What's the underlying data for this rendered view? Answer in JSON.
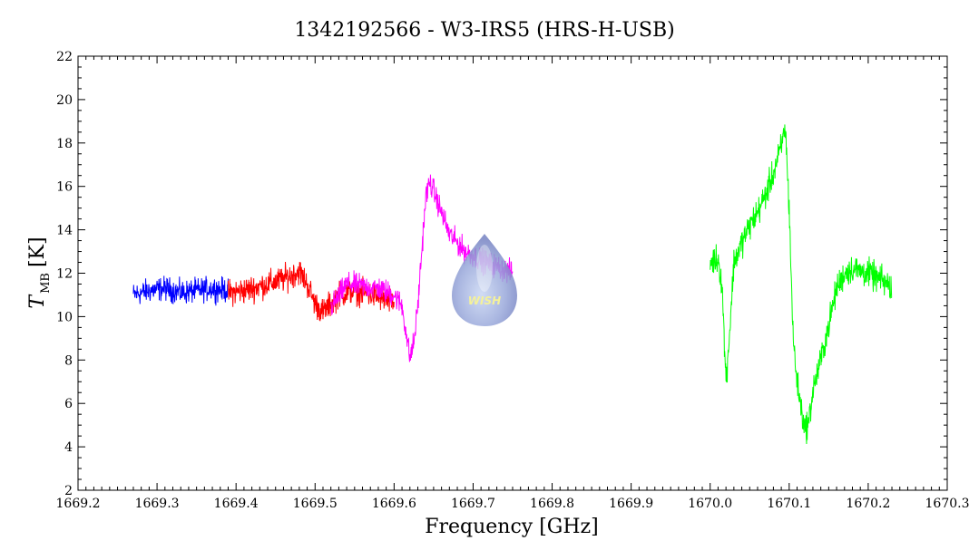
{
  "chart_data": {
    "type": "line",
    "title": "1342192566 - W3-IRS5 (HRS-H-USB)",
    "xlabel": "Frequency [GHz]",
    "ylabel_main": "T",
    "ylabel_sub": "MB",
    "ylabel_unit": "[K]",
    "xlim": [
      1669.2,
      1670.3
    ],
    "ylim": [
      2,
      22
    ],
    "x_ticks": [
      "1669.2",
      "1669.3",
      "1669.4",
      "1669.5",
      "1669.6",
      "1669.7",
      "1669.8",
      "1669.9",
      "1670.0",
      "1670.1",
      "1670.2",
      "1670.3"
    ],
    "y_ticks": [
      "2",
      "4",
      "6",
      "8",
      "10",
      "12",
      "14",
      "16",
      "18",
      "20",
      "22"
    ],
    "grid": false,
    "legend": "none",
    "logo_text": "WISH",
    "series": [
      {
        "color": "#0000ff",
        "points": [
          [
            1669.27,
            11.0
          ],
          [
            1669.29,
            11.2
          ],
          [
            1669.31,
            11.3
          ],
          [
            1669.33,
            11.1
          ],
          [
            1669.35,
            11.2
          ],
          [
            1669.37,
            11.3
          ],
          [
            1669.39,
            11.2
          ]
        ],
        "noise": 0.45
      },
      {
        "color": "#ff0000",
        "points": [
          [
            1669.39,
            11.1
          ],
          [
            1669.41,
            11.2
          ],
          [
            1669.43,
            11.4
          ],
          [
            1669.45,
            11.6
          ],
          [
            1669.47,
            11.9
          ],
          [
            1669.48,
            12.1
          ],
          [
            1669.49,
            11.5
          ],
          [
            1669.5,
            10.6
          ],
          [
            1669.51,
            10.2
          ],
          [
            1669.53,
            11.0
          ],
          [
            1669.55,
            11.2
          ],
          [
            1669.58,
            10.9
          ],
          [
            1669.6,
            10.6
          ]
        ],
        "noise": 0.5
      },
      {
        "color": "#ff00ff",
        "points": [
          [
            1669.52,
            10.4
          ],
          [
            1669.54,
            11.5
          ],
          [
            1669.56,
            11.4
          ],
          [
            1669.58,
            11.3
          ],
          [
            1669.6,
            11.0
          ],
          [
            1669.61,
            10.5
          ],
          [
            1669.615,
            9.3
          ],
          [
            1669.62,
            8.1
          ],
          [
            1669.625,
            8.8
          ],
          [
            1669.63,
            10.5
          ],
          [
            1669.635,
            13.0
          ],
          [
            1669.64,
            15.5
          ],
          [
            1669.645,
            16.2
          ],
          [
            1669.65,
            15.8
          ],
          [
            1669.66,
            14.8
          ],
          [
            1669.67,
            13.8
          ],
          [
            1669.69,
            13.0
          ],
          [
            1669.71,
            12.6
          ],
          [
            1669.73,
            12.3
          ],
          [
            1669.75,
            12.0
          ]
        ],
        "noise": 0.45
      },
      {
        "color": "#00ff00",
        "points": [
          [
            1670.0,
            12.5
          ],
          [
            1670.01,
            12.7
          ],
          [
            1670.015,
            11.5
          ],
          [
            1670.02,
            7.0
          ],
          [
            1670.025,
            9.5
          ],
          [
            1670.03,
            12.5
          ],
          [
            1670.04,
            13.4
          ],
          [
            1670.05,
            14.2
          ],
          [
            1670.06,
            14.8
          ],
          [
            1670.07,
            15.6
          ],
          [
            1670.08,
            16.6
          ],
          [
            1670.09,
            17.8
          ],
          [
            1670.095,
            18.8
          ],
          [
            1670.1,
            15.0
          ],
          [
            1670.105,
            9.0
          ],
          [
            1670.11,
            7.0
          ],
          [
            1670.115,
            5.8
          ],
          [
            1670.12,
            4.8
          ],
          [
            1670.125,
            5.2
          ],
          [
            1670.13,
            6.6
          ],
          [
            1670.14,
            8.0
          ],
          [
            1670.15,
            9.6
          ],
          [
            1670.16,
            11.3
          ],
          [
            1670.17,
            12.0
          ],
          [
            1670.18,
            12.2
          ],
          [
            1670.19,
            12.1
          ],
          [
            1670.2,
            12.0
          ],
          [
            1670.21,
            11.8
          ],
          [
            1670.22,
            11.6
          ],
          [
            1670.23,
            11.3
          ]
        ],
        "noise": 0.55
      }
    ]
  }
}
